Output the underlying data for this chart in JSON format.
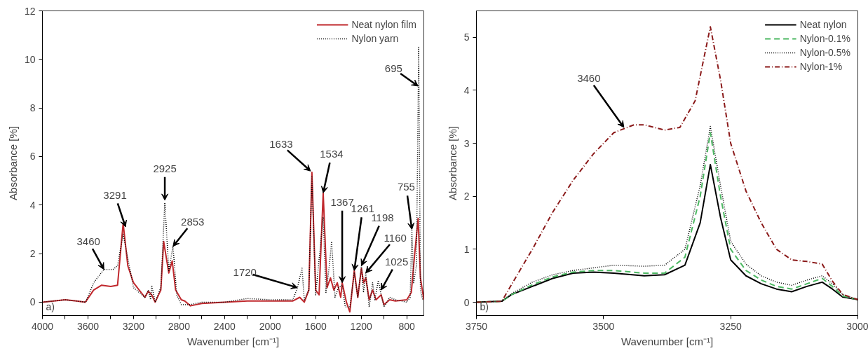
{
  "chart_data": [
    {
      "type": "line",
      "xlabel": "Wavenumber [cm⁻¹]",
      "ylabel": "Absorbance [%]",
      "xlim": [
        4000,
        650
      ],
      "ylim": [
        -0.55,
        12
      ],
      "xticks": [
        4000,
        {
          "value": 3800,
          "label": null
        },
        3600,
        {
          "value": 3400,
          "label": null
        },
        3200,
        {
          "value": 3000,
          "label": null
        },
        2800,
        {
          "value": 2600,
          "label": null
        },
        2400,
        {
          "value": 2200,
          "label": null
        },
        2000,
        {
          "value": 1800,
          "label": null
        },
        1600,
        {
          "value": 1400,
          "label": null
        },
        1200,
        {
          "value": 1000,
          "label": null
        },
        800
      ],
      "yticks": [
        0,
        2,
        4,
        6,
        8,
        10,
        12
      ],
      "legend": "top right",
      "grid": false,
      "series": [
        {
          "name": "Neat nylon film",
          "color": "#c0282d",
          "line_style": "solid",
          "x": [
            4000,
            3800,
            3700,
            3623,
            3550,
            3480,
            3400,
            3340,
            3291,
            3250,
            3200,
            3150,
            3100,
            3070,
            3040,
            3010,
            2960,
            2935,
            2890,
            2860,
            2830,
            2780,
            2750,
            2700,
            2600,
            2400,
            2200,
            2000,
            1800,
            1740,
            1700,
            1660,
            1633,
            1600,
            1570,
            1534,
            1500,
            1470,
            1440,
            1410,
            1380,
            1367,
            1330,
            1300,
            1261,
            1230,
            1198,
            1180,
            1160,
            1130,
            1100,
            1070,
            1025,
            1000,
            950,
            900,
            800,
            760,
            730,
            700,
            680,
            650
          ],
          "values": [
            0,
            0.1,
            0.05,
            0,
            0.5,
            0.7,
            0.65,
            0.7,
            3.25,
            1.5,
            0.8,
            0.5,
            0.2,
            0.45,
            0.3,
            0,
            0.5,
            2.5,
            1.2,
            1.7,
            0.5,
            0.1,
            0.05,
            -0.15,
            -0.05,
            0,
            0.05,
            0.05,
            0.05,
            0.2,
            0,
            0.5,
            5.35,
            0.5,
            0.3,
            4.5,
            0.6,
            1,
            0.5,
            0.8,
            0.2,
            0.8,
            0,
            -0.4,
            1.3,
            0.2,
            1.4,
            0.8,
            1,
            0.1,
            0.5,
            0.1,
            0.3,
            -0.1,
            0.1,
            0.05,
            0.1,
            0.4,
            2,
            3.45,
            1,
            0.1
          ]
        },
        {
          "name": "Nylon yarn",
          "color": "#000000",
          "line_style": "dotted",
          "x": [
            4000,
            3800,
            3620,
            3550,
            3460,
            3380,
            3340,
            3291,
            3250,
            3200,
            3100,
            3070,
            3050,
            3040,
            3010,
            2960,
            2925,
            2890,
            2853,
            2820,
            2780,
            2700,
            2600,
            2400,
            2200,
            2000,
            1800,
            1760,
            1740,
            1720,
            1700,
            1660,
            1633,
            1600,
            1534,
            1510,
            1480,
            1460,
            1430,
            1400,
            1367,
            1340,
            1300,
            1261,
            1230,
            1198,
            1180,
            1160,
            1130,
            1100,
            1080,
            1050,
            1025,
            1000,
            950,
            900,
            800,
            770,
            755,
            740,
            715,
            695,
            680,
            660,
            650
          ],
          "values": [
            0,
            0.1,
            0,
            0.8,
            1.35,
            1.35,
            1.5,
            2.8,
            1.8,
            0.6,
            0.2,
            0.5,
            0.1,
            0.7,
            0,
            0.6,
            4.1,
            1.3,
            2.3,
            0.3,
            -0.1,
            -0.1,
            0,
            0,
            0.15,
            0.1,
            0.1,
            0.6,
            1,
            1.4,
            0.1,
            0.5,
            5.2,
            0.3,
            3.5,
            0.4,
            1.5,
            2.5,
            0.2,
            0.6,
            0.7,
            -0.2,
            -0.2,
            1.2,
            0.2,
            1.5,
            0.4,
            1.2,
            -0.2,
            0.8,
            0.1,
            0.9,
            0.3,
            -0.2,
            0.2,
            0.1,
            0,
            0.2,
            3,
            0.8,
            1.5,
            10.5,
            0.5,
            0.1,
            0.1
          ]
        }
      ],
      "annotations": [
        {
          "text": "3460",
          "x": 3460,
          "y": 1.35
        },
        {
          "text": "3291",
          "x": 3270,
          "y": 3.1
        },
        {
          "text": "2925",
          "x": 2925,
          "y": 4.2
        },
        {
          "text": "2853",
          "x": 2853,
          "y": 2.3
        },
        {
          "text": "1720",
          "x": 1760,
          "y": 0.6
        },
        {
          "text": "1633",
          "x": 1645,
          "y": 5.4
        },
        {
          "text": "1534",
          "x": 1534,
          "y": 4.5
        },
        {
          "text": "1367",
          "x": 1367,
          "y": 0.8
        },
        {
          "text": "1261",
          "x": 1261,
          "y": 1.3
        },
        {
          "text": "1198",
          "x": 1198,
          "y": 1.5
        },
        {
          "text": "1160",
          "x": 1160,
          "y": 1.2
        },
        {
          "text": "1025",
          "x": 1025,
          "y": 0.5
        },
        {
          "text": "755",
          "x": 755,
          "y": 3.0
        },
        {
          "text": "695",
          "x": 700,
          "y": 8.9
        },
        "a)"
      ]
    },
    {
      "type": "line",
      "xlabel": "Wavenumber [cm⁻¹]",
      "ylabel": "Absorbance [%]",
      "xlim": [
        3750,
        3000
      ],
      "ylim": [
        -0.25,
        5.5
      ],
      "xticks": [
        3750,
        3500,
        3250,
        3000
      ],
      "yticks": [
        0,
        1,
        2,
        3,
        4,
        5
      ],
      "legend": "top right",
      "grid": false,
      "series": [
        {
          "name": "Neat nylon",
          "color": "#000000",
          "line_style": "solid",
          "x": [
            3750,
            3700,
            3680,
            3640,
            3600,
            3560,
            3520,
            3480,
            3420,
            3380,
            3340,
            3310,
            3290,
            3270,
            3250,
            3220,
            3190,
            3160,
            3130,
            3100,
            3070,
            3050,
            3030,
            3000
          ],
          "values": [
            0,
            0.02,
            0.15,
            0.3,
            0.45,
            0.55,
            0.57,
            0.55,
            0.5,
            0.52,
            0.7,
            1.5,
            2.6,
            1.6,
            0.8,
            0.5,
            0.35,
            0.25,
            0.2,
            0.3,
            0.38,
            0.25,
            0.1,
            0.05
          ]
        },
        {
          "name": "Nylon-0.1%",
          "color": "#4cb862",
          "line_style": "dashed",
          "x": [
            3750,
            3700,
            3680,
            3640,
            3600,
            3560,
            3520,
            3480,
            3420,
            3380,
            3340,
            3310,
            3290,
            3270,
            3250,
            3220,
            3190,
            3160,
            3130,
            3100,
            3070,
            3050,
            3030,
            3000
          ],
          "values": [
            0,
            0.02,
            0.15,
            0.33,
            0.48,
            0.57,
            0.6,
            0.6,
            0.55,
            0.55,
            0.85,
            2.0,
            3.2,
            2.0,
            1.0,
            0.6,
            0.42,
            0.3,
            0.25,
            0.35,
            0.45,
            0.3,
            0.12,
            0.05
          ]
        },
        {
          "name": "Nylon-0.5%",
          "color": "#000000",
          "line_style": "dotted",
          "x": [
            3750,
            3700,
            3680,
            3640,
            3600,
            3560,
            3520,
            3480,
            3420,
            3380,
            3340,
            3310,
            3290,
            3270,
            3250,
            3220,
            3190,
            3160,
            3130,
            3100,
            3070,
            3050,
            3030,
            3000
          ],
          "values": [
            0,
            0.02,
            0.17,
            0.38,
            0.52,
            0.6,
            0.65,
            0.7,
            0.68,
            0.7,
            1.0,
            2.2,
            3.32,
            2.2,
            1.15,
            0.72,
            0.5,
            0.38,
            0.32,
            0.42,
            0.5,
            0.35,
            0.15,
            0.05
          ]
        },
        {
          "name": "Nylon-1%",
          "color": "#8b1a1a",
          "line_style": "dashdot",
          "x": [
            3750,
            3700,
            3680,
            3640,
            3600,
            3560,
            3520,
            3480,
            3440,
            3420,
            3380,
            3350,
            3320,
            3290,
            3270,
            3250,
            3220,
            3190,
            3160,
            3130,
            3100,
            3070,
            3050,
            3030,
            3000
          ],
          "values": [
            0,
            0.02,
            0.35,
            1.0,
            1.7,
            2.3,
            2.8,
            3.2,
            3.35,
            3.35,
            3.25,
            3.3,
            3.8,
            5.2,
            4.2,
            3.0,
            2.1,
            1.5,
            1.0,
            0.8,
            0.77,
            0.72,
            0.4,
            0.15,
            0.05
          ]
        }
      ],
      "annotations": [
        {
          "text": "3460",
          "x": 3460,
          "y": 3.3
        },
        "b)"
      ]
    }
  ]
}
